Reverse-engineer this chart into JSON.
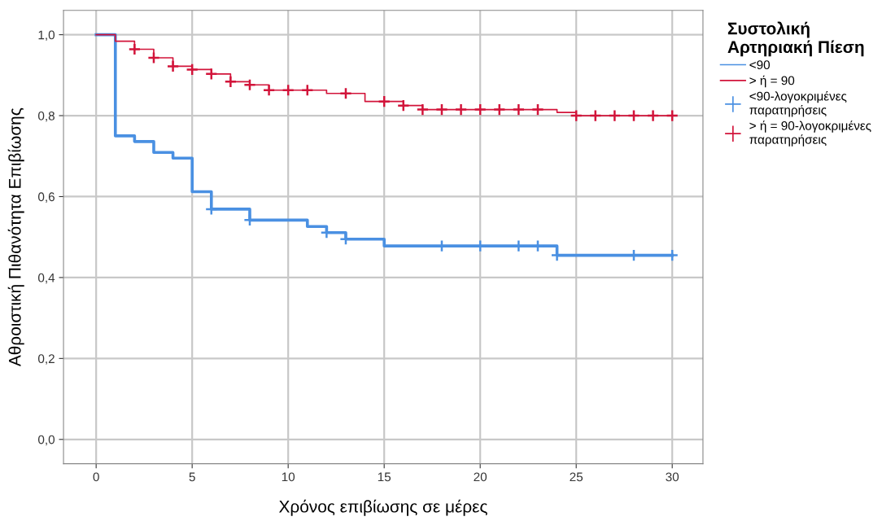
{
  "chart_data": {
    "type": "step",
    "xlabel": "Χρόνος επιβίωσης σε μέρες",
    "ylabel": "Αθροιστική Πιθανότητα Επιβίωσης",
    "legend_title": "Συστολική\nΑρτηριακή Πίεση",
    "legend": "right",
    "grid": true,
    "xlim": [
      -1.7,
      31.6
    ],
    "xticks": [
      0,
      5,
      10,
      15,
      20,
      25,
      30
    ],
    "ylim": [
      -0.06,
      1.06
    ],
    "yticks": [
      {
        "value": 0,
        "label": "0,0"
      },
      {
        "value": 0.2,
        "label": "0,2"
      },
      {
        "value": 0.4,
        "label": "0,4"
      },
      {
        "value": 0.6,
        "label": "0,6"
      },
      {
        "value": 0.8,
        "label": "0,8"
      },
      {
        "value": 1,
        "label": "1,0"
      }
    ],
    "series": [
      {
        "name": "<90",
        "color": "#4a90e2",
        "x": [
          0,
          1,
          2,
          3,
          4,
          5,
          6,
          8,
          11,
          12,
          13,
          15,
          24,
          30
        ],
        "values": [
          1,
          0.75,
          0.736,
          0.709,
          0.695,
          0.612,
          0.569,
          0.542,
          0.526,
          0.511,
          0.495,
          0.478,
          0.455,
          0.455
        ]
      },
      {
        "name": "> ή = 90",
        "color": "#d2143a",
        "x": [
          0,
          1,
          2,
          3,
          4,
          5,
          6,
          7,
          8,
          9,
          12,
          14,
          16,
          17,
          24,
          25,
          30
        ],
        "values": [
          1,
          0.984,
          0.964,
          0.943,
          0.922,
          0.914,
          0.903,
          0.884,
          0.876,
          0.863,
          0.855,
          0.835,
          0.825,
          0.815,
          0.808,
          0.8,
          0.8
        ]
      },
      {
        "name": "<90-λογοκριμένες\nπαρατηρήσεις",
        "type": "scatter",
        "marker": "cross",
        "color": "#4a90e2",
        "x": [
          6,
          8,
          12,
          13,
          18,
          20,
          22,
          23,
          24,
          28,
          30
        ],
        "values": [
          0.569,
          0.542,
          0.511,
          0.495,
          0.478,
          0.478,
          0.478,
          0.478,
          0.455,
          0.455,
          0.455
        ]
      },
      {
        "name": "> ή = 90-λογοκριμένες\nπαρατηρήσεις",
        "type": "scatter",
        "marker": "cross",
        "color": "#d2143a",
        "x": [
          2,
          3,
          4,
          5,
          6,
          7,
          8,
          9,
          10,
          11,
          13,
          15,
          16,
          17,
          18,
          19,
          20,
          21,
          22,
          23,
          25,
          26,
          27,
          28,
          29,
          30
        ],
        "values": [
          0.964,
          0.943,
          0.922,
          0.914,
          0.903,
          0.884,
          0.876,
          0.863,
          0.863,
          0.863,
          0.855,
          0.835,
          0.825,
          0.815,
          0.815,
          0.815,
          0.815,
          0.815,
          0.815,
          0.815,
          0.8,
          0.8,
          0.8,
          0.8,
          0.8,
          0.8
        ]
      }
    ]
  }
}
